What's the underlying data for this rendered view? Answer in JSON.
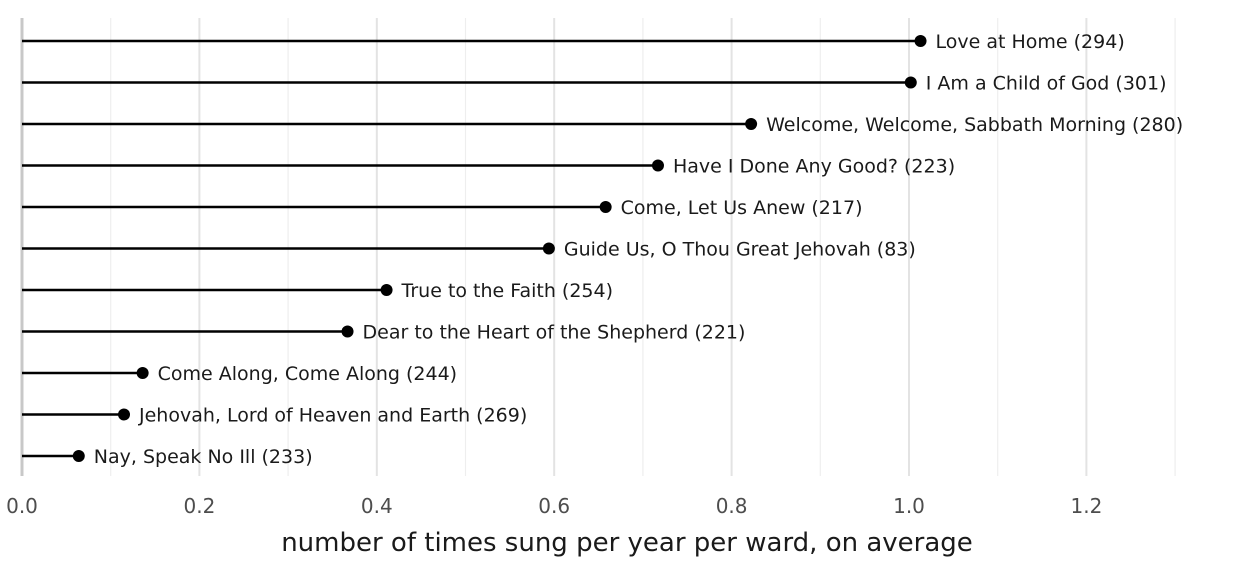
{
  "chart_data": {
    "type": "lollipop",
    "orientation": "horizontal",
    "xlabel": "number of times sung per year per ward, on average",
    "ylabel": "",
    "xlim": [
      0,
      1.3
    ],
    "xticks": [
      0.0,
      0.2,
      0.4,
      0.6,
      0.8,
      1.0,
      1.2
    ],
    "xtick_labels": [
      "0.0",
      "0.2",
      "0.4",
      "0.6",
      "0.8",
      "1.0",
      "1.2"
    ],
    "grid": true,
    "items": [
      {
        "label": "Love at Home (294)",
        "value": 1.013
      },
      {
        "label": "I Am a Child of God (301)",
        "value": 1.002
      },
      {
        "label": "Welcome, Welcome, Sabbath Morning (280)",
        "value": 0.822
      },
      {
        "label": "Have I Done Any Good? (223)",
        "value": 0.717
      },
      {
        "label": "Come, Let Us Anew (217)",
        "value": 0.658
      },
      {
        "label": "Guide Us, O Thou Great Jehovah (83)",
        "value": 0.594
      },
      {
        "label": "True to the Faith (254)",
        "value": 0.411
      },
      {
        "label": "Dear to the Heart of the Shepherd (221)",
        "value": 0.367
      },
      {
        "label": "Come Along, Come Along (244)",
        "value": 0.136
      },
      {
        "label": "Jehovah, Lord of Heaven and Earth (269)",
        "value": 0.115
      },
      {
        "label": "Nay, Speak No Ill (233)",
        "value": 0.064
      }
    ]
  }
}
